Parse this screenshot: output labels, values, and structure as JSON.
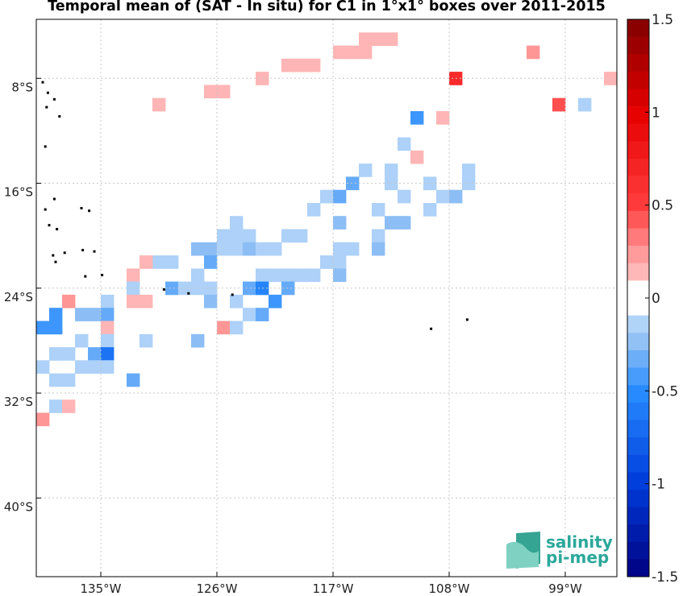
{
  "title": "Temporal mean of (SAT - In situ) for C1 in 1°x1° boxes over 2011-2015",
  "map": {
    "lon_range": [
      -140,
      -95
    ],
    "lat_range": [
      -3.5,
      -46
    ],
    "lon_ticks": [
      {
        "v": -135,
        "label": "135°W"
      },
      {
        "v": -126,
        "label": "126°W"
      },
      {
        "v": -117,
        "label": "117°W"
      },
      {
        "v": -108,
        "label": "108°W"
      },
      {
        "v": -99,
        "label": "99°W"
      }
    ],
    "lat_ticks": [
      {
        "v": -8,
        "label": "8°S"
      },
      {
        "v": -16,
        "label": "16°S"
      },
      {
        "v": -24,
        "label": "24°S"
      },
      {
        "v": -32,
        "label": "32°S"
      },
      {
        "v": -40,
        "label": "40°S"
      }
    ],
    "grid": true
  },
  "colorbar": {
    "min": -1.5,
    "max": 1.5,
    "ticks": [
      {
        "v": 1.5,
        "label": "1.5"
      },
      {
        "v": 1,
        "label": "1"
      },
      {
        "v": 0.5,
        "label": "0.5"
      },
      {
        "v": 0,
        "label": "0"
      },
      {
        "v": -0.5,
        "label": "-0.5"
      },
      {
        "v": -1,
        "label": "-1"
      },
      {
        "v": -1.5,
        "label": "-1.5"
      }
    ]
  },
  "logo": {
    "line1": "salinity",
    "line2": "pi-mep"
  },
  "chart_data": {
    "type": "heatmap",
    "title": "Temporal mean of (SAT - In situ) for C1 in 1°x1° boxes over 2011-2015",
    "xlabel": "",
    "ylabel": "",
    "cell_size_deg": 1,
    "cells": [
      {
        "lon": -115,
        "lat": -5,
        "v": 0.15
      },
      {
        "lon": -114,
        "lat": -5,
        "v": 0.15
      },
      {
        "lon": -113,
        "lat": -5,
        "v": 0.15
      },
      {
        "lon": -117,
        "lat": -6,
        "v": 0.15
      },
      {
        "lon": -116,
        "lat": -6,
        "v": 0.15
      },
      {
        "lon": -115,
        "lat": -6,
        "v": 0.15
      },
      {
        "lon": -102,
        "lat": -6,
        "v": 0.25
      },
      {
        "lon": -121,
        "lat": -7,
        "v": 0.15
      },
      {
        "lon": -120,
        "lat": -7,
        "v": 0.15
      },
      {
        "lon": -119,
        "lat": -7,
        "v": 0.15
      },
      {
        "lon": -123,
        "lat": -8,
        "v": 0.15
      },
      {
        "lon": -108,
        "lat": -8,
        "v": 0.65
      },
      {
        "lon": -96,
        "lat": -8,
        "v": 0.15
      },
      {
        "lon": -127,
        "lat": -9,
        "v": 0.15
      },
      {
        "lon": -126,
        "lat": -9,
        "v": 0.15
      },
      {
        "lon": -131,
        "lat": -10,
        "v": 0.15
      },
      {
        "lon": -100,
        "lat": -10,
        "v": 0.45
      },
      {
        "lon": -98,
        "lat": -10,
        "v": -0.15
      },
      {
        "lon": -111,
        "lat": -11,
        "v": -0.45
      },
      {
        "lon": -109,
        "lat": -11,
        "v": 0.15
      },
      {
        "lon": -112,
        "lat": -13,
        "v": -0.15
      },
      {
        "lon": -111,
        "lat": -14,
        "v": 0.15
      },
      {
        "lon": -115,
        "lat": -15,
        "v": -0.15
      },
      {
        "lon": -113,
        "lat": -15,
        "v": -0.15
      },
      {
        "lon": -107,
        "lat": -15,
        "v": -0.15
      },
      {
        "lon": -116,
        "lat": -16,
        "v": -0.35
      },
      {
        "lon": -113,
        "lat": -16,
        "v": -0.15
      },
      {
        "lon": -110,
        "lat": -16,
        "v": -0.15
      },
      {
        "lon": -107,
        "lat": -16,
        "v": -0.15
      },
      {
        "lon": -118,
        "lat": -17,
        "v": -0.15
      },
      {
        "lon": -117,
        "lat": -17,
        "v": -0.35
      },
      {
        "lon": -112,
        "lat": -17,
        "v": -0.15
      },
      {
        "lon": -109,
        "lat": -17,
        "v": -0.15
      },
      {
        "lon": -108,
        "lat": -17,
        "v": -0.25
      },
      {
        "lon": -119,
        "lat": -18,
        "v": -0.15
      },
      {
        "lon": -114,
        "lat": -18,
        "v": -0.15
      },
      {
        "lon": -110,
        "lat": -18,
        "v": -0.15
      },
      {
        "lon": -125,
        "lat": -19,
        "v": -0.15
      },
      {
        "lon": -117,
        "lat": -19,
        "v": -0.25
      },
      {
        "lon": -113,
        "lat": -19,
        "v": -0.25
      },
      {
        "lon": -112,
        "lat": -19,
        "v": -0.25
      },
      {
        "lon": -126,
        "lat": -20,
        "v": -0.15
      },
      {
        "lon": -125,
        "lat": -20,
        "v": -0.15
      },
      {
        "lon": -124,
        "lat": -20,
        "v": -0.15
      },
      {
        "lon": -121,
        "lat": -20,
        "v": -0.15
      },
      {
        "lon": -120,
        "lat": -20,
        "v": -0.15
      },
      {
        "lon": -114,
        "lat": -20,
        "v": -0.15
      },
      {
        "lon": -128,
        "lat": -21,
        "v": -0.25
      },
      {
        "lon": -127,
        "lat": -21,
        "v": -0.25
      },
      {
        "lon": -126,
        "lat": -21,
        "v": -0.15
      },
      {
        "lon": -125,
        "lat": -21,
        "v": -0.15
      },
      {
        "lon": -124,
        "lat": -21,
        "v": -0.25
      },
      {
        "lon": -123,
        "lat": -21,
        "v": -0.15
      },
      {
        "lon": -122,
        "lat": -21,
        "v": -0.15
      },
      {
        "lon": -117,
        "lat": -21,
        "v": -0.15
      },
      {
        "lon": -116,
        "lat": -21,
        "v": -0.15
      },
      {
        "lon": -114,
        "lat": -21,
        "v": -0.25
      },
      {
        "lon": -131,
        "lat": -22,
        "v": -0.15
      },
      {
        "lon": -132,
        "lat": -22,
        "v": 0.15
      },
      {
        "lon": -130,
        "lat": -22,
        "v": -0.15
      },
      {
        "lon": -127,
        "lat": -22,
        "v": -0.35
      },
      {
        "lon": -118,
        "lat": -22,
        "v": -0.15
      },
      {
        "lon": -117,
        "lat": -22,
        "v": -0.15
      },
      {
        "lon": -133,
        "lat": -23,
        "v": 0.15
      },
      {
        "lon": -128,
        "lat": -23,
        "v": -0.15
      },
      {
        "lon": -123,
        "lat": -23,
        "v": -0.15
      },
      {
        "lon": -122,
        "lat": -23,
        "v": -0.15
      },
      {
        "lon": -121,
        "lat": -23,
        "v": -0.15
      },
      {
        "lon": -120,
        "lat": -23,
        "v": -0.15
      },
      {
        "lon": -119,
        "lat": -23,
        "v": -0.15
      },
      {
        "lon": -117,
        "lat": -23,
        "v": -0.25
      },
      {
        "lon": -133,
        "lat": -24,
        "v": -0.15
      },
      {
        "lon": -130,
        "lat": -24,
        "v": -0.35
      },
      {
        "lon": -129,
        "lat": -24,
        "v": -0.15
      },
      {
        "lon": -128,
        "lat": -24,
        "v": -0.15
      },
      {
        "lon": -127,
        "lat": -24,
        "v": -0.15
      },
      {
        "lon": -124,
        "lat": -24,
        "v": -0.35
      },
      {
        "lon": -123,
        "lat": -24,
        "v": -0.55
      },
      {
        "lon": -121,
        "lat": -24,
        "v": -0.35
      },
      {
        "lon": -138,
        "lat": -25,
        "v": 0.25
      },
      {
        "lon": -135,
        "lat": -25,
        "v": -0.15
      },
      {
        "lon": -133,
        "lat": -25,
        "v": 0.15
      },
      {
        "lon": -132,
        "lat": -25,
        "v": 0.15
      },
      {
        "lon": -127,
        "lat": -25,
        "v": -0.25
      },
      {
        "lon": -125,
        "lat": -25,
        "v": -0.15
      },
      {
        "lon": -122,
        "lat": -25,
        "v": -0.45
      },
      {
        "lon": -139,
        "lat": -26,
        "v": -0.45
      },
      {
        "lon": -137,
        "lat": -26,
        "v": -0.25
      },
      {
        "lon": -136,
        "lat": -26,
        "v": -0.25
      },
      {
        "lon": -135,
        "lat": -26,
        "v": -0.35
      },
      {
        "lon": -124,
        "lat": -26,
        "v": -0.15
      },
      {
        "lon": -123,
        "lat": -26,
        "v": -0.35
      },
      {
        "lon": -140,
        "lat": -27,
        "v": -0.45
      },
      {
        "lon": -139,
        "lat": -27,
        "v": -0.45
      },
      {
        "lon": -135,
        "lat": -27,
        "v": 0.15
      },
      {
        "lon": -126,
        "lat": -27,
        "v": 0.25
      },
      {
        "lon": -125,
        "lat": -27,
        "v": -0.15
      },
      {
        "lon": -137,
        "lat": -28,
        "v": -0.15
      },
      {
        "lon": -135,
        "lat": -28,
        "v": -0.15
      },
      {
        "lon": -132,
        "lat": -28,
        "v": -0.15
      },
      {
        "lon": -128,
        "lat": -28,
        "v": -0.25
      },
      {
        "lon": -139,
        "lat": -29,
        "v": -0.15
      },
      {
        "lon": -138,
        "lat": -29,
        "v": -0.15
      },
      {
        "lon": -136,
        "lat": -29,
        "v": -0.35
      },
      {
        "lon": -135,
        "lat": -29,
        "v": -0.65
      },
      {
        "lon": -140,
        "lat": -30,
        "v": -0.15
      },
      {
        "lon": -137,
        "lat": -30,
        "v": -0.15
      },
      {
        "lon": -136,
        "lat": -30,
        "v": -0.15
      },
      {
        "lon": -135,
        "lat": -30,
        "v": -0.15
      },
      {
        "lon": -139,
        "lat": -31,
        "v": -0.15
      },
      {
        "lon": -138,
        "lat": -31,
        "v": -0.15
      },
      {
        "lon": -133,
        "lat": -31,
        "v": -0.35
      },
      {
        "lon": -139,
        "lat": -33,
        "v": -0.15
      },
      {
        "lon": -138,
        "lat": -33,
        "v": 0.15
      },
      {
        "lon": -140,
        "lat": -34,
        "v": 0.25
      }
    ]
  }
}
